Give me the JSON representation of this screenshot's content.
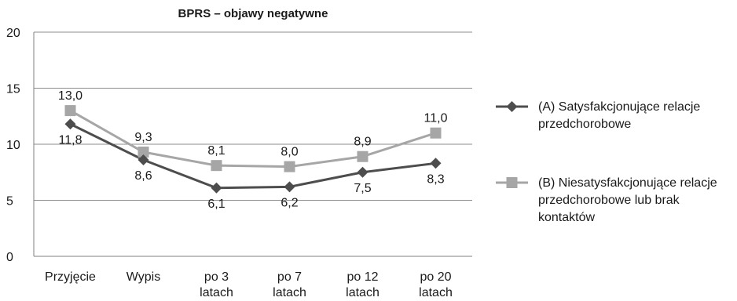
{
  "chart_data": {
    "type": "line",
    "title": "BPRS – objawy negatywne",
    "categories": [
      [
        "Przyjęcie"
      ],
      [
        "Wypis"
      ],
      [
        "po 3",
        "latach"
      ],
      [
        "po 7",
        "latach"
      ],
      [
        "po 12",
        "latach"
      ],
      [
        "po 20",
        "latach"
      ]
    ],
    "series": [
      {
        "name": "(A) Satysfakcjonujące relacje przedchorobowe",
        "name_lines": [
          "(A) Satysfakcjonujące relacje",
          "przedchorobowe"
        ],
        "values": [
          11.8,
          8.6,
          6.1,
          6.2,
          7.5,
          8.3
        ],
        "labels": [
          "11,8",
          "8,6",
          "6,1",
          "6,2",
          "7,5",
          "8,3"
        ],
        "color": "#4d4d4d",
        "marker": "diamond"
      },
      {
        "name": "(B) Niesatysfakcjonujące relacje przedchorobowe lub brak kontaktów",
        "name_lines": [
          "(B) Niesatysfakcjonujące relacje",
          "przedchorobowe lub brak",
          "kontaktów"
        ],
        "values": [
          13.0,
          9.3,
          8.1,
          8.0,
          8.9,
          11.0
        ],
        "labels": [
          "13,0",
          "9,3",
          "8,1",
          "8,0",
          "8,9",
          "11,0"
        ],
        "color": "#a6a6a6",
        "marker": "square"
      }
    ],
    "y_ticks": [
      0,
      5,
      10,
      15,
      20
    ],
    "ylim": [
      0,
      20
    ],
    "grid": "horizontal",
    "legend": "right"
  }
}
